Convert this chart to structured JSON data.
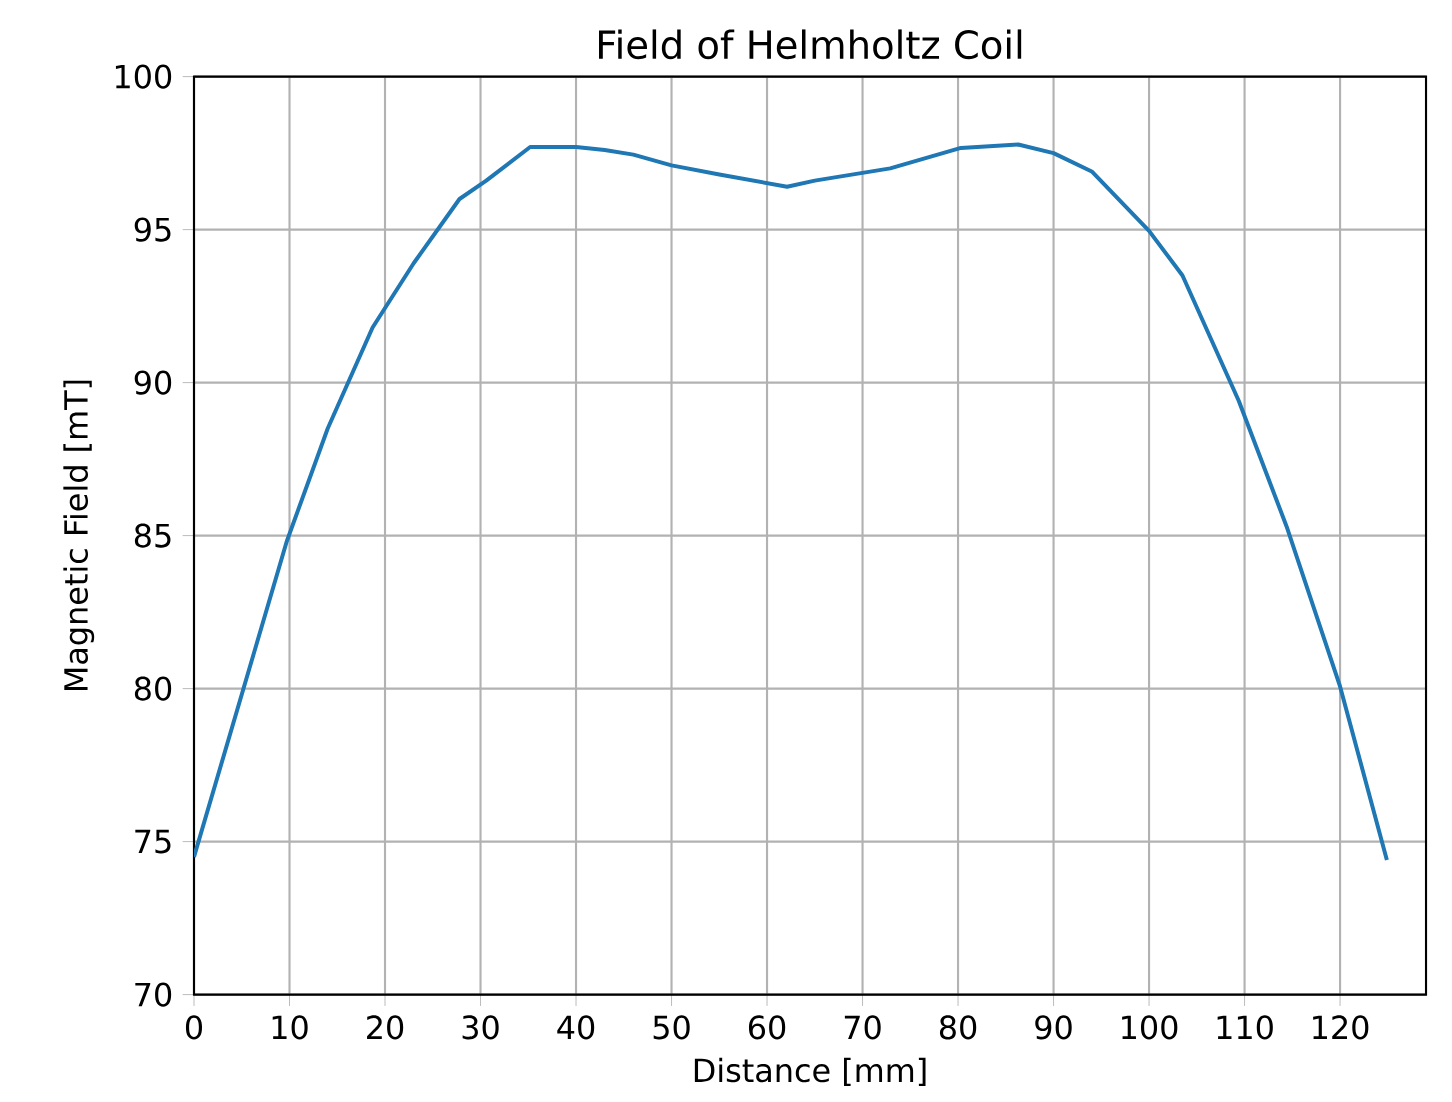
{
  "chart_data": {
    "type": "line",
    "title": "Field of Helmholtz Coil",
    "xlabel": "Distance [mm]",
    "ylabel": "Magnetic Field [mT]",
    "x": [
      0,
      9.7,
      14,
      18.7,
      23,
      27.8,
      30.6,
      35.2,
      40,
      43,
      46,
      50,
      55,
      62.1,
      65,
      72.9,
      80.3,
      86.3,
      90,
      94,
      100,
      103.5,
      109.4,
      114.4,
      120,
      124.9
    ],
    "series": [
      {
        "color": "#1f77b4",
        "values": [
          74.5,
          84.8,
          88.5,
          91.8,
          93.9,
          96.0,
          96.6,
          97.7,
          97.7,
          97.6,
          97.45,
          97.1,
          96.8,
          96.4,
          96.6,
          97.0,
          97.67,
          97.78,
          97.5,
          96.9,
          94.96,
          93.5,
          89.4,
          85.3,
          80.07,
          74.4
        ]
      }
    ],
    "xlim": [
      0,
      129
    ],
    "ylim": [
      70,
      100
    ],
    "xticks": [
      0,
      10,
      20,
      30,
      40,
      50,
      60,
      70,
      80,
      90,
      100,
      110,
      120
    ],
    "yticks": [
      70,
      75,
      80,
      85,
      90,
      95,
      100
    ],
    "grid": true,
    "marker": "none",
    "line_style": "solid"
  }
}
